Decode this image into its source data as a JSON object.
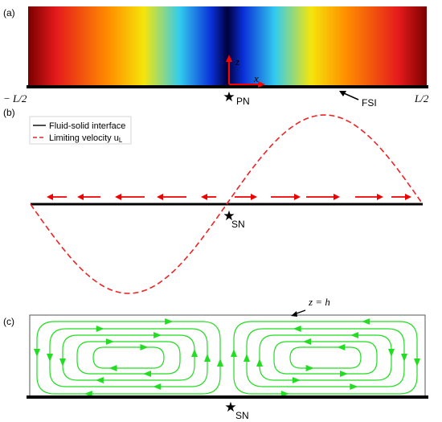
{
  "panel_a": {
    "label": "(a)",
    "left_label": "− L/2",
    "right_label": "L/2",
    "z_axis_label": "z",
    "x_axis_label": "x",
    "star_label": "PN",
    "fsi_label": "FSI",
    "colors": {
      "dark_red": "#7a0000",
      "red": "#e41a1c",
      "orange": "#ff8c00",
      "yellow": "#f5e50a",
      "cyan": "#33ccee",
      "blue": "#0a2fd8",
      "navy": "#00003c",
      "axis_red": "#ff0000"
    }
  },
  "panel_b": {
    "label": "(b)",
    "legend": {
      "item1": "Fluid-solid interface",
      "item2": "Limiting velocity u",
      "item2_sub": "L"
    },
    "star_label": "SN",
    "colors": {
      "curve": "#ee2222",
      "arrows": "#ee0000",
      "line": "#000000"
    }
  },
  "panel_c": {
    "label": "(c)",
    "height_label": "z = h",
    "star_label": "SN",
    "colors": {
      "streamline": "#22dd22",
      "box": "#555555"
    }
  }
}
